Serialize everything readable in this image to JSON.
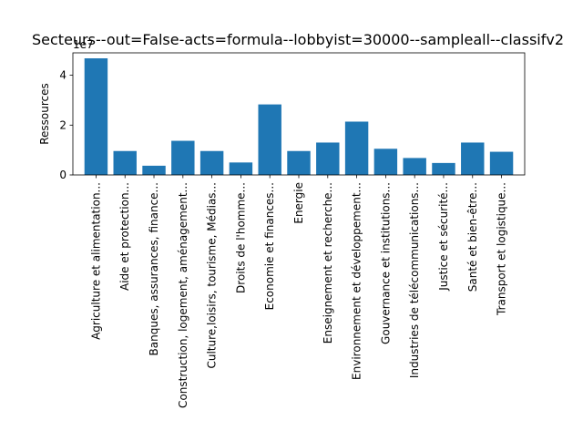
{
  "chart_data": {
    "type": "bar",
    "title": "Secteurs--out=False-acts=formula--lobbyist=30000--sampleall--classifv2",
    "xlabel": "",
    "ylabel": "Ressources",
    "offset_label": "1e7",
    "ylim": [
      0,
      4.9
    ],
    "yticks": [
      0,
      2,
      4
    ],
    "grid": false,
    "legend": "none",
    "bar_color": "#1f77b4",
    "categories": [
      "Agriculture et alimentation...",
      "Aide et protection...",
      "Banques, assurances, finance...",
      "Construction, logement, aménagement...",
      "Culture,loisirs, tourisme, Médias...",
      "Droits de l'homme...",
      "Economie et finances...",
      "Energie",
      "Enseignement et recherche...",
      "Environnement et développement...",
      "Gouvernance et institutions...",
      "Industries de télécommunications...",
      "Justice et sécurité...",
      "Santé et bien-être...",
      "Transport et logistique..."
    ],
    "values": [
      4.68,
      0.96,
      0.37,
      1.37,
      0.96,
      0.5,
      2.83,
      0.96,
      1.3,
      2.14,
      1.05,
      0.68,
      0.48,
      1.3,
      0.93
    ]
  }
}
